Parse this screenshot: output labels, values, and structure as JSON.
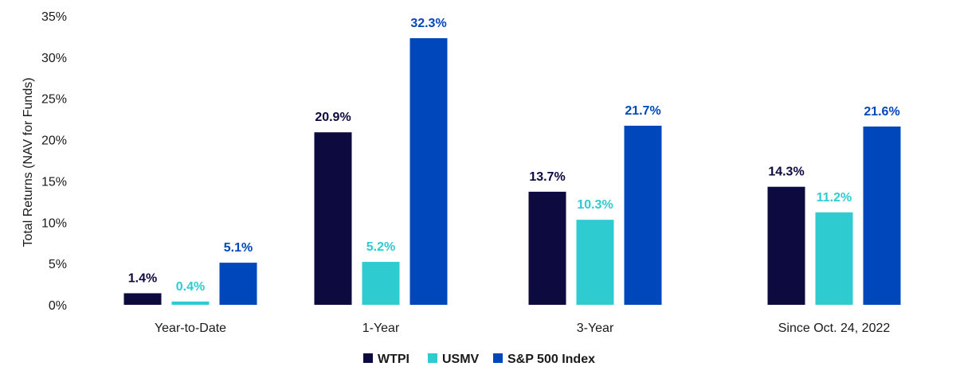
{
  "chart_data": {
    "type": "bar",
    "ylabel": "Total Returns (NAV for Funds)",
    "xlabel": "",
    "ylim": [
      0,
      35
    ],
    "yticks": [
      "0%",
      "5%",
      "10%",
      "15%",
      "20%",
      "25%",
      "30%",
      "35%"
    ],
    "ytick_values": [
      0,
      5,
      10,
      15,
      20,
      25,
      30,
      35
    ],
    "grid": false,
    "legend_position": "bottom-center",
    "categories": [
      "Year-to-Date",
      "1-Year",
      "3-Year",
      "Since Oct. 24, 2022"
    ],
    "series": [
      {
        "name": "WTPI",
        "color": "#0c0a3e",
        "values": [
          1.4,
          20.9,
          13.7,
          14.3
        ],
        "labels": [
          "1.4%",
          "20.9%",
          "13.7%",
          "14.3%"
        ]
      },
      {
        "name": "USMV",
        "color": "#2ecbd0",
        "values": [
          0.4,
          5.2,
          10.3,
          11.2
        ],
        "labels": [
          "0.4%",
          "5.2%",
          "10.3%",
          "11.2%"
        ]
      },
      {
        "name": "S&P 500 Index",
        "color": "#0047bb",
        "values": [
          5.1,
          32.3,
          21.7,
          21.6
        ],
        "labels": [
          "5.1%",
          "32.3%",
          "21.7%",
          "21.6%"
        ]
      }
    ]
  }
}
